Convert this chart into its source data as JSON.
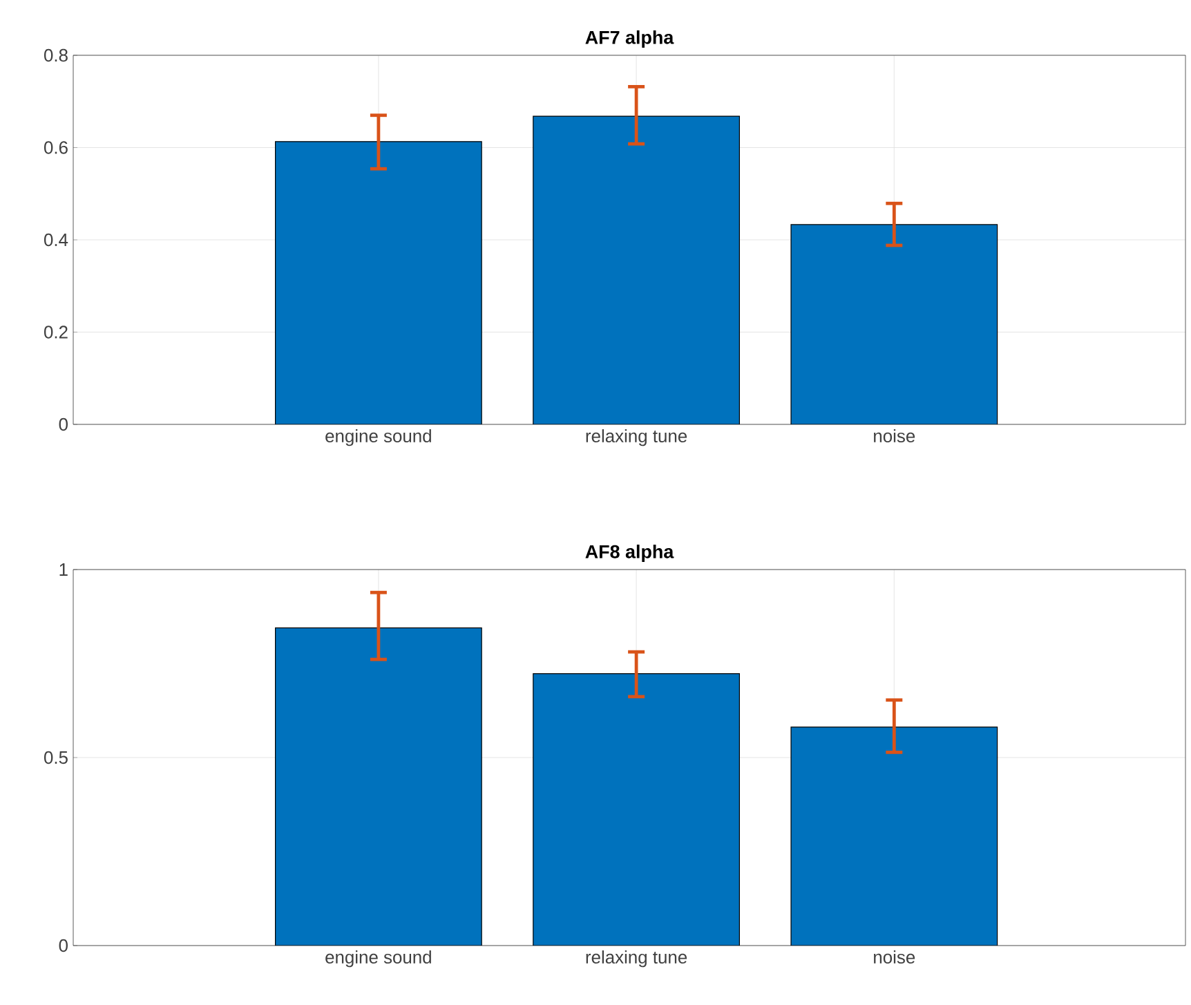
{
  "chart_data": [
    {
      "type": "bar",
      "title": "AF7 alpha",
      "categories": [
        "engine sound",
        "relaxing tune",
        "noise"
      ],
      "values": [
        0.613,
        0.668,
        0.433
      ],
      "color": "#0072bd",
      "errors": [
        [
          0.554,
          0.67
        ],
        [
          0.608,
          0.732
        ],
        [
          0.388,
          0.479
        ]
      ],
      "ylim": [
        0,
        0.8
      ],
      "yticks": [
        0,
        0.2,
        0.4,
        0.6,
        0.8
      ],
      "grid": true
    },
    {
      "type": "bar",
      "title": "AF8 alpha",
      "categories": [
        "engine sound",
        "relaxing tune",
        "noise"
      ],
      "values": [
        0.845,
        0.723,
        0.581
      ],
      "color": "#0072bd",
      "errors": [
        [
          0.761,
          0.939
        ],
        [
          0.662,
          0.781
        ],
        [
          0.514,
          0.653
        ]
      ],
      "ylim": [
        0,
        1
      ],
      "yticks": [
        0,
        0.5,
        1
      ],
      "grid": true
    }
  ]
}
